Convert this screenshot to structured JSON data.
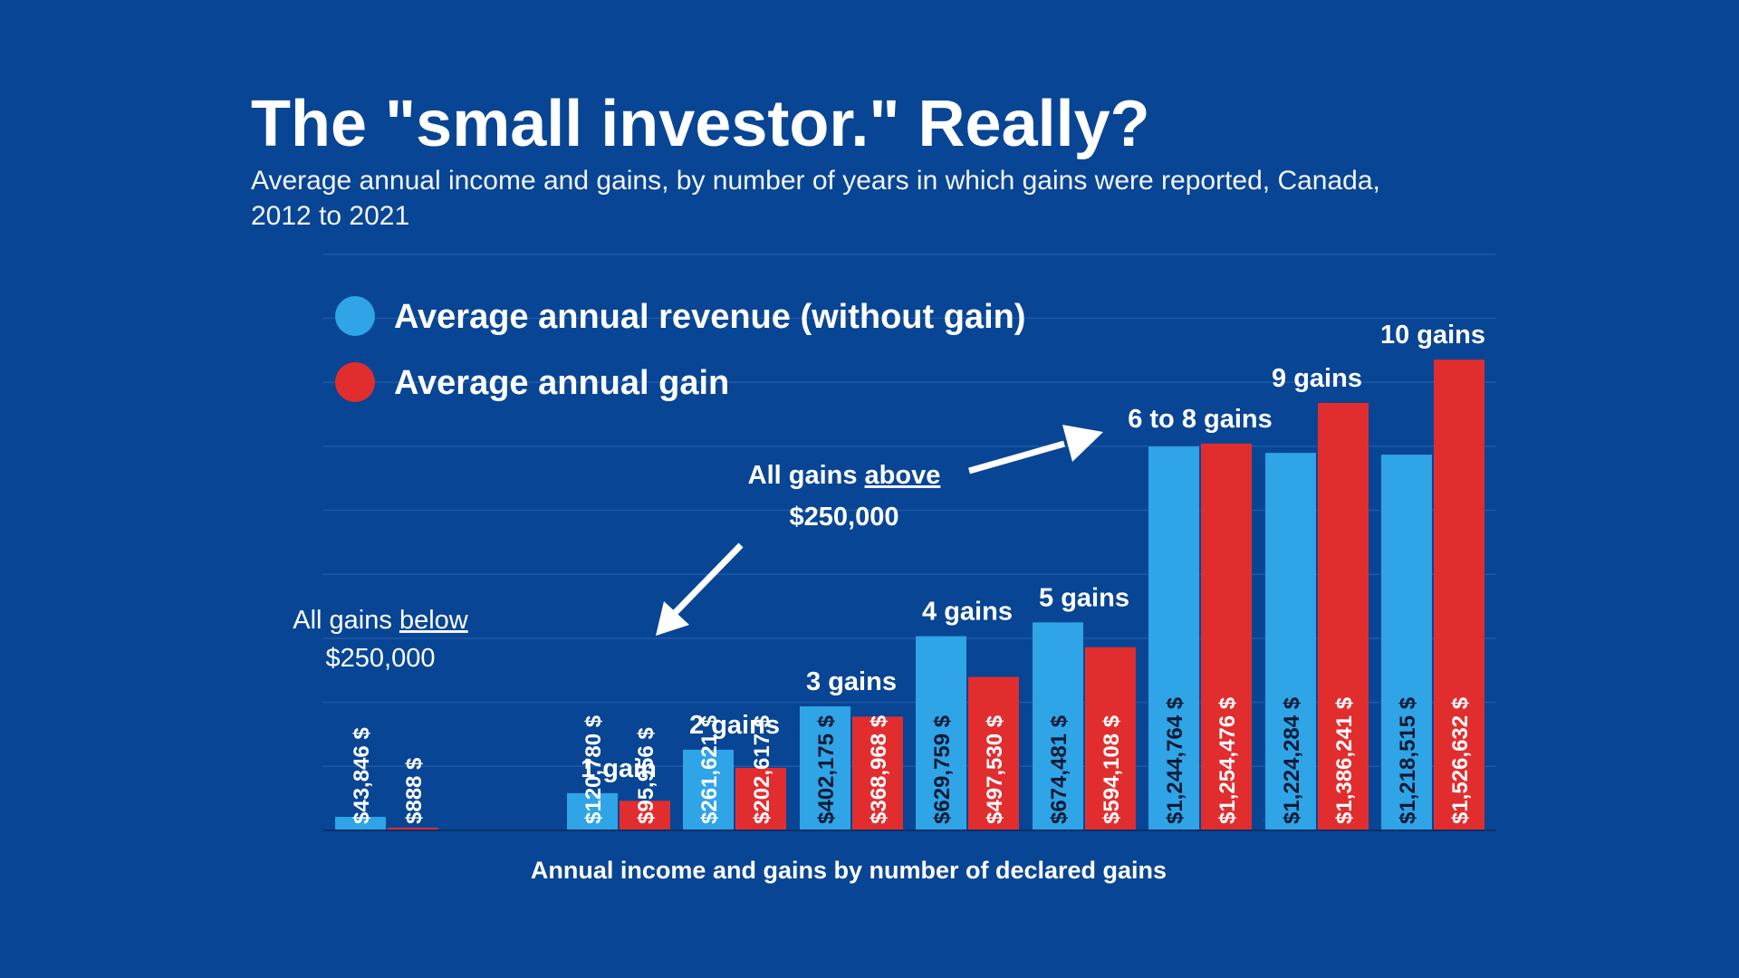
{
  "title": "The \"small investor.\" Really?",
  "subtitle": "Average annual income and gains, by number of years in which gains were reported, Canada, 2012 to 2021",
  "colors": {
    "background": "#084594",
    "revenue": "#2fa4e7",
    "gain": "#e22d2f",
    "gridline": "#1f5aa6"
  },
  "legend": {
    "revenue": "Average annual revenue (without gain)",
    "gain": "Average annual gain"
  },
  "annotations": {
    "below_line1_prefix": "All gains ",
    "below_line1_emph": "below",
    "below_line2": "$250,000",
    "above_line1_prefix": "All gains ",
    "above_line1_emph": "above",
    "above_line2": "$250,000"
  },
  "chart_data": {
    "type": "bar",
    "xlabel": "Annual income and gains by number of declared gains",
    "ylim": [
      0,
      1900000
    ],
    "grid": true,
    "legend_position": "top-left",
    "categories": [
      "",
      "1 gain",
      "2 gains",
      "3 gains",
      "4 gains",
      "5 gains",
      "6 to 8 gains",
      "9 gains",
      "10 gains"
    ],
    "series": [
      {
        "name": "Average annual revenue (without gain)",
        "values": [
          43846,
          120780,
          261621,
          402175,
          629759,
          674481,
          1244764,
          1224284,
          1218515
        ],
        "labels": [
          "$43,846 $",
          "$120,780 $",
          "$261,621 $",
          "$402,175 $",
          "$629,759 $",
          "$674,481 $",
          "$1,244,764 $",
          "$1,224,284 $",
          "$1,218,515 $"
        ]
      },
      {
        "name": "Average annual gain",
        "values": [
          888,
          95956,
          202617,
          368968,
          497530,
          594108,
          1254476,
          1386241,
          1526632
        ],
        "labels": [
          "$888 $",
          "$95,956 $",
          "$202,617 $",
          "$368,968 $",
          "$497,530 $",
          "$594,108 $",
          "$1,254,476 $",
          "$1,386,241 $",
          "$1,526,632 $"
        ]
      }
    ]
  }
}
